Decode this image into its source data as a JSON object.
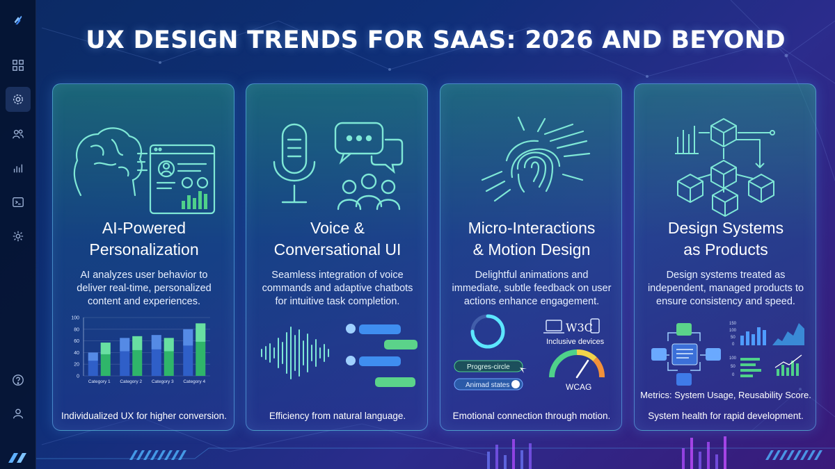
{
  "title": "UX DESIGN TRENDS FOR SAAS: 2026 AND BEYOND",
  "sidebar": {
    "items": [
      {
        "icon": "dashboard-icon"
      },
      {
        "icon": "settings-icon",
        "active": true
      },
      {
        "icon": "users-icon"
      },
      {
        "icon": "bar-chart-icon"
      },
      {
        "icon": "terminal-icon"
      },
      {
        "icon": "gear-icon"
      }
    ],
    "bottom": [
      {
        "icon": "help-icon"
      },
      {
        "icon": "user-icon"
      }
    ]
  },
  "cards": [
    {
      "title_line1": "AI-Powered",
      "title_line2": "Personalization",
      "desc_line1": "AI analyzes user behavior to",
      "desc_line2": "deliver real-time, personalized",
      "desc_line3": "content and experiences.",
      "footer": "Individualized UX for higher conversion.",
      "chart_data": {
        "type": "bar",
        "categories": [
          "Category 1",
          "Category 2",
          "Category 3",
          "Category 4"
        ],
        "yticks": [
          "0",
          "20",
          "40",
          "60",
          "80",
          "100"
        ],
        "ylim": [
          0,
          100
        ],
        "series": [
          {
            "values": [
              40,
              65,
              70,
              80
            ]
          },
          {
            "values": [
              57,
              68,
              65,
              90
            ]
          }
        ]
      }
    },
    {
      "title_line1": "Voice &",
      "title_line2": "Conversational UI",
      "desc_line1": "Seamless integration of voice",
      "desc_line2": "commands and adaptive chatbots",
      "desc_line3": "for intuitive task completion.",
      "footer": "Efficiency from natural language."
    },
    {
      "title_line1": "Micro-Interactions",
      "title_line2": "& Motion Design",
      "desc_line1": "Delightful animations and",
      "desc_line2": "immediate, subtle feedback on user",
      "desc_line3": "actions enhance engagement.",
      "footer": "Emotional connection through motion.",
      "widgets": {
        "progress_label": "Progres-circle",
        "states_label": "Animad states",
        "devices_label": "Inclusive devices",
        "w3c_label": "W3C",
        "wcag_label": "WCAG"
      }
    },
    {
      "title_line1": "Design Systems",
      "title_line2": "as Products",
      "desc_line1": "Design systems treated as",
      "desc_line2": "independent, managed products to",
      "desc_line3": "ensure consistency and speed.",
      "metrics": "Metrics: System Usage, Reusability Score.",
      "footer": "System health for rapid development.",
      "mini_ticks_top": [
        "150",
        "100",
        "50",
        "0"
      ],
      "mini_ticks_bottom": [
        "100",
        "50",
        "0"
      ]
    }
  ],
  "colors": {
    "accent_green": "#4fd18a",
    "accent_blue": "#4fa3ff",
    "line_cyan": "#7fe3ff"
  }
}
